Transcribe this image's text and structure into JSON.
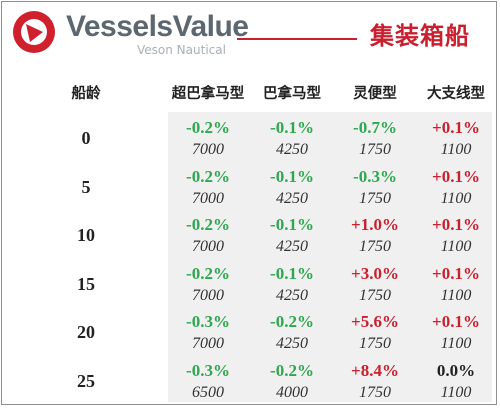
{
  "brand": {
    "name": "VesselsValue",
    "subtitle": "Veson Nautical",
    "logo_icon": "vesselsvalue-logo-icon"
  },
  "title": "集装箱船",
  "table": {
    "row_header": "船龄",
    "columns": [
      "超巴拿马型",
      "巴拿马型",
      "灵便型",
      "大支线型"
    ],
    "rows": [
      {
        "age": "0",
        "changes": [
          "-0.2%",
          "-0.1%",
          "-0.7%",
          "+0.1%"
        ],
        "values": [
          "7000",
          "4250",
          "1750",
          "1100"
        ]
      },
      {
        "age": "5",
        "changes": [
          "-0.2%",
          "-0.1%",
          "-0.3%",
          "+0.1%"
        ],
        "values": [
          "7000",
          "4250",
          "1750",
          "1100"
        ]
      },
      {
        "age": "10",
        "changes": [
          "-0.2%",
          "-0.1%",
          "+1.0%",
          "+0.1%"
        ],
        "values": [
          "7000",
          "4250",
          "1750",
          "1100"
        ]
      },
      {
        "age": "15",
        "changes": [
          "-0.2%",
          "-0.1%",
          "+3.0%",
          "+0.1%"
        ],
        "values": [
          "7000",
          "4250",
          "1750",
          "1100"
        ]
      },
      {
        "age": "20",
        "changes": [
          "-0.3%",
          "-0.2%",
          "+5.6%",
          "+0.1%"
        ],
        "values": [
          "7000",
          "4250",
          "1750",
          "1100"
        ]
      },
      {
        "age": "25",
        "changes": [
          "-0.3%",
          "-0.2%",
          "+8.4%",
          "0.0%"
        ],
        "values": [
          "6500",
          "4000",
          "1750",
          "1100"
        ]
      }
    ]
  },
  "colors": {
    "brand_red": "#c8202e",
    "negative_green": "#2ea84f",
    "positive_red": "#c8202e",
    "panel_gray": "#f0f0f0"
  }
}
